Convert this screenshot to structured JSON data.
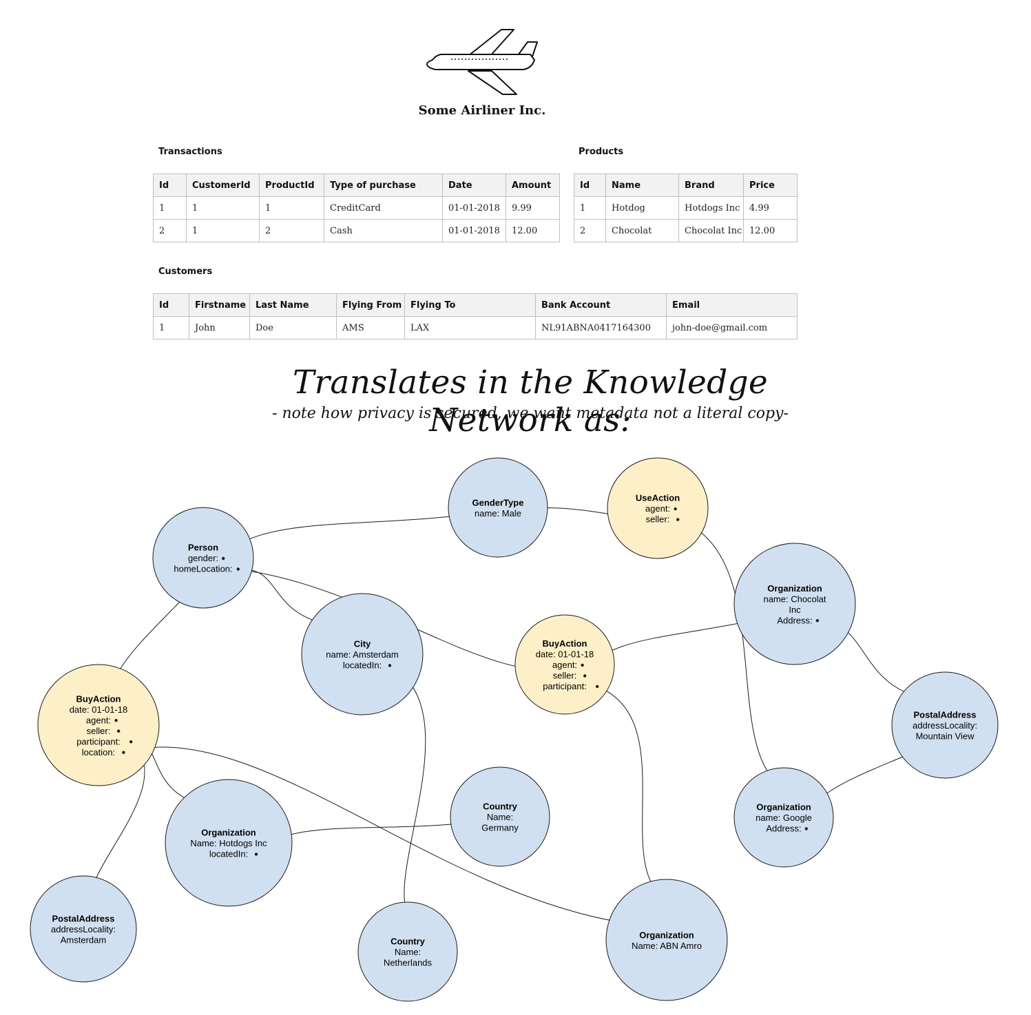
{
  "company": {
    "name": "Some Airliner Inc."
  },
  "icons": {
    "logo": "airplane-icon"
  },
  "colors": {
    "node_blue": "#d1e0f0",
    "node_yellow": "#fdf0c8",
    "stroke": "#1a1a1a",
    "header_bg": "#f2f2f2"
  },
  "transactions": {
    "title": "Transactions",
    "headers": [
      "Id",
      "CustomerId",
      "ProductId",
      "Type of purchase",
      "Date",
      "Amount"
    ],
    "rows": [
      [
        "1",
        "1",
        "1",
        "CreditCard",
        "01-01-2018",
        "9.99"
      ],
      [
        "2",
        "1",
        "2",
        "Cash",
        "01-01-2018",
        "12.00"
      ]
    ]
  },
  "products": {
    "title": "Products",
    "headers": [
      "Id",
      "Name",
      "Brand",
      "Price"
    ],
    "rows": [
      [
        "1",
        "Hotdog",
        "Hotdogs Inc",
        "4.99"
      ],
      [
        "2",
        "Chocolat",
        "Chocolat Inc",
        "12.00"
      ]
    ]
  },
  "customers": {
    "title": "Customers",
    "headers": [
      "Id",
      "Firstname",
      "Last Name",
      "Flying From",
      "Flying To",
      "Bank Account",
      "Email"
    ],
    "rows": [
      [
        "1",
        "John",
        "Doe",
        "AMS",
        "LAX",
        "NL91ABNA0417164300",
        "john-doe@gmail.com"
      ]
    ]
  },
  "headline": "Translates in the Knowledge Network as:",
  "subline": "- note how privacy is secured, we want metadata not a literal copy-",
  "nodes": [
    {
      "id": "person",
      "kind": "blue",
      "title": "Person",
      "lines": [
        "gender:",
        "homeLocation:"
      ]
    },
    {
      "id": "gendertype",
      "kind": "blue",
      "title": "GenderType",
      "lines": [
        "name: Male"
      ]
    },
    {
      "id": "useaction",
      "kind": "yellow",
      "title": "UseAction",
      "lines": [
        "agent:",
        "seller:"
      ]
    },
    {
      "id": "org-chocolat",
      "kind": "blue",
      "title": "Organization",
      "lines": [
        "name: Chocolat",
        "Inc",
        "Address:"
      ]
    },
    {
      "id": "city",
      "kind": "blue",
      "title": "City",
      "lines": [
        "name: Amsterdam",
        "locatedIn:"
      ]
    },
    {
      "id": "buyaction-2",
      "kind": "yellow",
      "title": "BuyAction",
      "lines": [
        "date: 01-01-18",
        "agent:",
        "seller:",
        "participant:"
      ]
    },
    {
      "id": "buyaction-1",
      "kind": "yellow",
      "title": "BuyAction",
      "lines": [
        "date: 01-01-18",
        "agent:",
        "seller:",
        "participant:",
        "location:"
      ]
    },
    {
      "id": "postal-mv",
      "kind": "blue",
      "title": "PostalAddress",
      "lines": [
        "addressLocality:",
        "Mountain View"
      ]
    },
    {
      "id": "country-de",
      "kind": "blue",
      "title": "Country",
      "lines": [
        "Name:",
        "Germany"
      ]
    },
    {
      "id": "org-hotdogs",
      "kind": "blue",
      "title": "Organization",
      "lines": [
        "Name: Hotdogs Inc",
        "locatedIn:"
      ]
    },
    {
      "id": "org-google",
      "kind": "blue",
      "title": "Organization",
      "lines": [
        "name: Google",
        "Address:"
      ]
    },
    {
      "id": "postal-ams",
      "kind": "blue",
      "title": "PostalAddress",
      "lines": [
        "addressLocality:",
        "Amsterdam"
      ]
    },
    {
      "id": "country-nl",
      "kind": "blue",
      "title": "Country",
      "lines": [
        "Name:",
        "Netherlands"
      ]
    },
    {
      "id": "org-abn",
      "kind": "blue",
      "title": "Organization",
      "lines": [
        "Name: ABN Amro"
      ]
    }
  ],
  "edges": [
    {
      "from": "person.gender",
      "to": "gendertype"
    },
    {
      "from": "person.homeLocation",
      "to": "city"
    },
    {
      "from": "useaction.agent",
      "to": "gendertype"
    },
    {
      "from": "useaction.seller",
      "to": "org-google"
    },
    {
      "from": "buyaction-2.agent",
      "to": "person"
    },
    {
      "from": "buyaction-2.seller",
      "to": "org-chocolat"
    },
    {
      "from": "buyaction-2.participant",
      "to": "org-abn"
    },
    {
      "from": "buyaction-1.agent",
      "to": "person"
    },
    {
      "from": "buyaction-1.seller",
      "to": "org-hotdogs"
    },
    {
      "from": "buyaction-1.participant",
      "to": "postal-ams"
    },
    {
      "from": "buyaction-1.location",
      "to": "org-abn"
    },
    {
      "from": "city.locatedIn",
      "to": "country-nl"
    },
    {
      "from": "org-hotdogs.locatedIn",
      "to": "country-de"
    },
    {
      "from": "org-chocolat.Address",
      "to": "postal-mv"
    },
    {
      "from": "org-google.Address",
      "to": "postal-mv"
    }
  ]
}
